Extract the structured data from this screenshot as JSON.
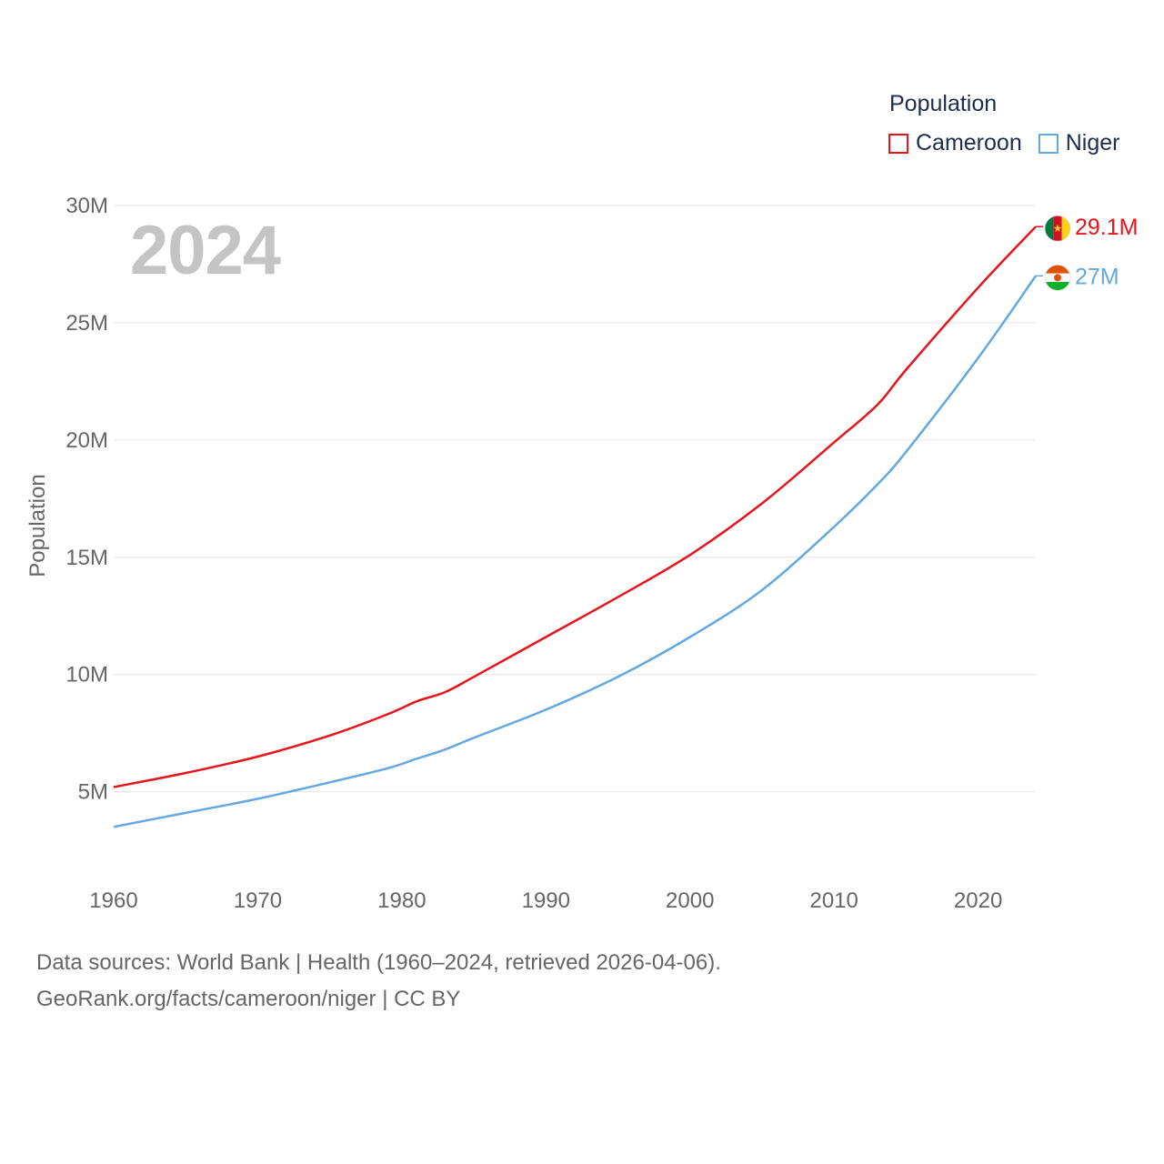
{
  "chart_data": {
    "type": "line",
    "title": "",
    "xlabel": "",
    "ylabel": "Population",
    "xlim": [
      1960,
      2024
    ],
    "ylim": [
      2000000,
      30000000
    ],
    "y_ticks": [
      5000000,
      10000000,
      15000000,
      20000000,
      25000000,
      30000000
    ],
    "y_tick_labels": [
      "5M",
      "10M",
      "15M",
      "20M",
      "25M",
      "30M"
    ],
    "x_ticks": [
      1960,
      1970,
      1980,
      1990,
      2000,
      2010,
      2020
    ],
    "x_tick_labels": [
      "1960",
      "1970",
      "1980",
      "1990",
      "2000",
      "2010",
      "2020"
    ],
    "grid": true,
    "legend_position": "top-right",
    "x": [
      1960,
      1965,
      1970,
      1975,
      1979,
      1981,
      1983,
      1985,
      1990,
      1995,
      2000,
      2005,
      2010,
      2013,
      2015,
      2020,
      2024
    ],
    "series": [
      {
        "name": "Cameroon",
        "color": "#e8141b",
        "end_label": "29.1M",
        "flag_icon": "cameroon-flag-icon",
        "values": [
          5200000,
          5800000,
          6500000,
          7400000,
          8300000,
          8850000,
          9250000,
          9900000,
          11600000,
          13300000,
          15100000,
          17300000,
          19900000,
          21500000,
          23000000,
          26500000,
          29100000
        ]
      },
      {
        "name": "Niger",
        "color": "#64a8e0",
        "end_label": "27M",
        "flag_icon": "niger-flag-icon",
        "values": [
          3500000,
          4100000,
          4700000,
          5400000,
          6000000,
          6400000,
          6800000,
          7300000,
          8500000,
          9900000,
          11600000,
          13600000,
          16300000,
          18100000,
          19500000,
          23500000,
          27000000
        ]
      }
    ]
  },
  "legend": {
    "title": "Population",
    "items": [
      {
        "label": "Cameroon",
        "color": "#e8141b"
      },
      {
        "label": "Niger",
        "color": "#64a8e0"
      }
    ]
  },
  "year_label": "2024",
  "footer": {
    "line1": "Data sources: World Bank | Health (1960–2024, retrieved 2026-04-06).",
    "line2": "GeoRank.org/facts/cameroon/niger | CC BY"
  }
}
